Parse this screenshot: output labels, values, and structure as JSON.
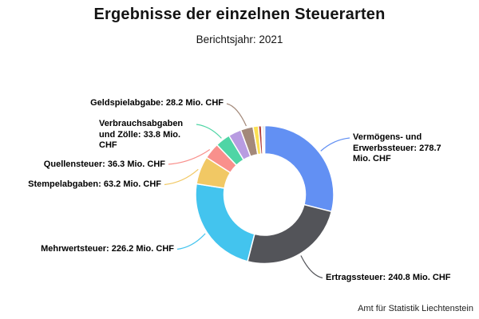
{
  "title": "Ergebnisse der einzelnen Steuerarten",
  "subtitle": "Berichtsjahr: 2021",
  "source": "Amt für Statistik Liechtenstein",
  "chart_data": {
    "type": "pie",
    "subtype": "donut",
    "unit": "Mio. CHF",
    "legend_position": "callout-labels",
    "slices": [
      {
        "name": "Vermögens- und Erwerbssteuer",
        "value": 278.7,
        "color": "#6290F3",
        "callout": "vermoegens"
      },
      {
        "name": "Ertragssteuer",
        "value": 240.8,
        "color": "#535459",
        "callout": "ertrag"
      },
      {
        "name": "Mehrwertsteuer",
        "value": 226.2,
        "color": "#43C4EE",
        "callout": "mehrwert"
      },
      {
        "name": "Stempelabgaben",
        "value": 63.2,
        "color": "#F1C864",
        "callout": "stempel"
      },
      {
        "name": "Quellensteuer",
        "value": 36.3,
        "color": "#F9908C",
        "callout": "quellen"
      },
      {
        "name": "Verbrauchsabgaben und Zölle",
        "value": 33.8,
        "color": "#4FD5A5",
        "callout": "verbrauchs"
      },
      {
        "name": "",
        "value": 29.0,
        "color": "#B89CE1",
        "unlabeled": true
      },
      {
        "name": "Geldspielabgabe",
        "value": 28.2,
        "color": "#A3897A",
        "callout": "geldspiel"
      },
      {
        "name": "",
        "value": 12.0,
        "color": "#FBE053",
        "unlabeled": true
      },
      {
        "name": "",
        "value": 7.0,
        "color": "#B4423E",
        "unlabeled": true
      },
      {
        "name": "",
        "value": 3.0,
        "color": "#3C5133",
        "unlabeled": true
      },
      {
        "name": "",
        "value": 4.0,
        "color": "#C2CBD0",
        "unlabeled": true
      }
    ]
  },
  "callouts": {
    "geldspiel": {
      "lines": [
        "Geldspielabgabe: 28.2 Mio. CHF"
      ]
    },
    "verbrauchs": {
      "lines": [
        "Verbrauchsabgaben",
        "und Zölle: 33.8 Mio.",
        "CHF"
      ]
    },
    "quellen": {
      "lines": [
        "Quellensteuer: 36.3 Mio. CHF"
      ]
    },
    "stempel": {
      "lines": [
        "Stempelabgaben: 63.2 Mio. CHF"
      ]
    },
    "mehrwert": {
      "lines": [
        "Mehrwertsteuer: 226.2 Mio. CHF"
      ]
    },
    "vermoegens": {
      "lines": [
        "Vermögens- und",
        "Erwerbssteuer: 278.7",
        "Mio. CHF"
      ]
    },
    "ertrag": {
      "lines": [
        "Ertragssteuer: 240.8 Mio. CHF"
      ]
    }
  }
}
